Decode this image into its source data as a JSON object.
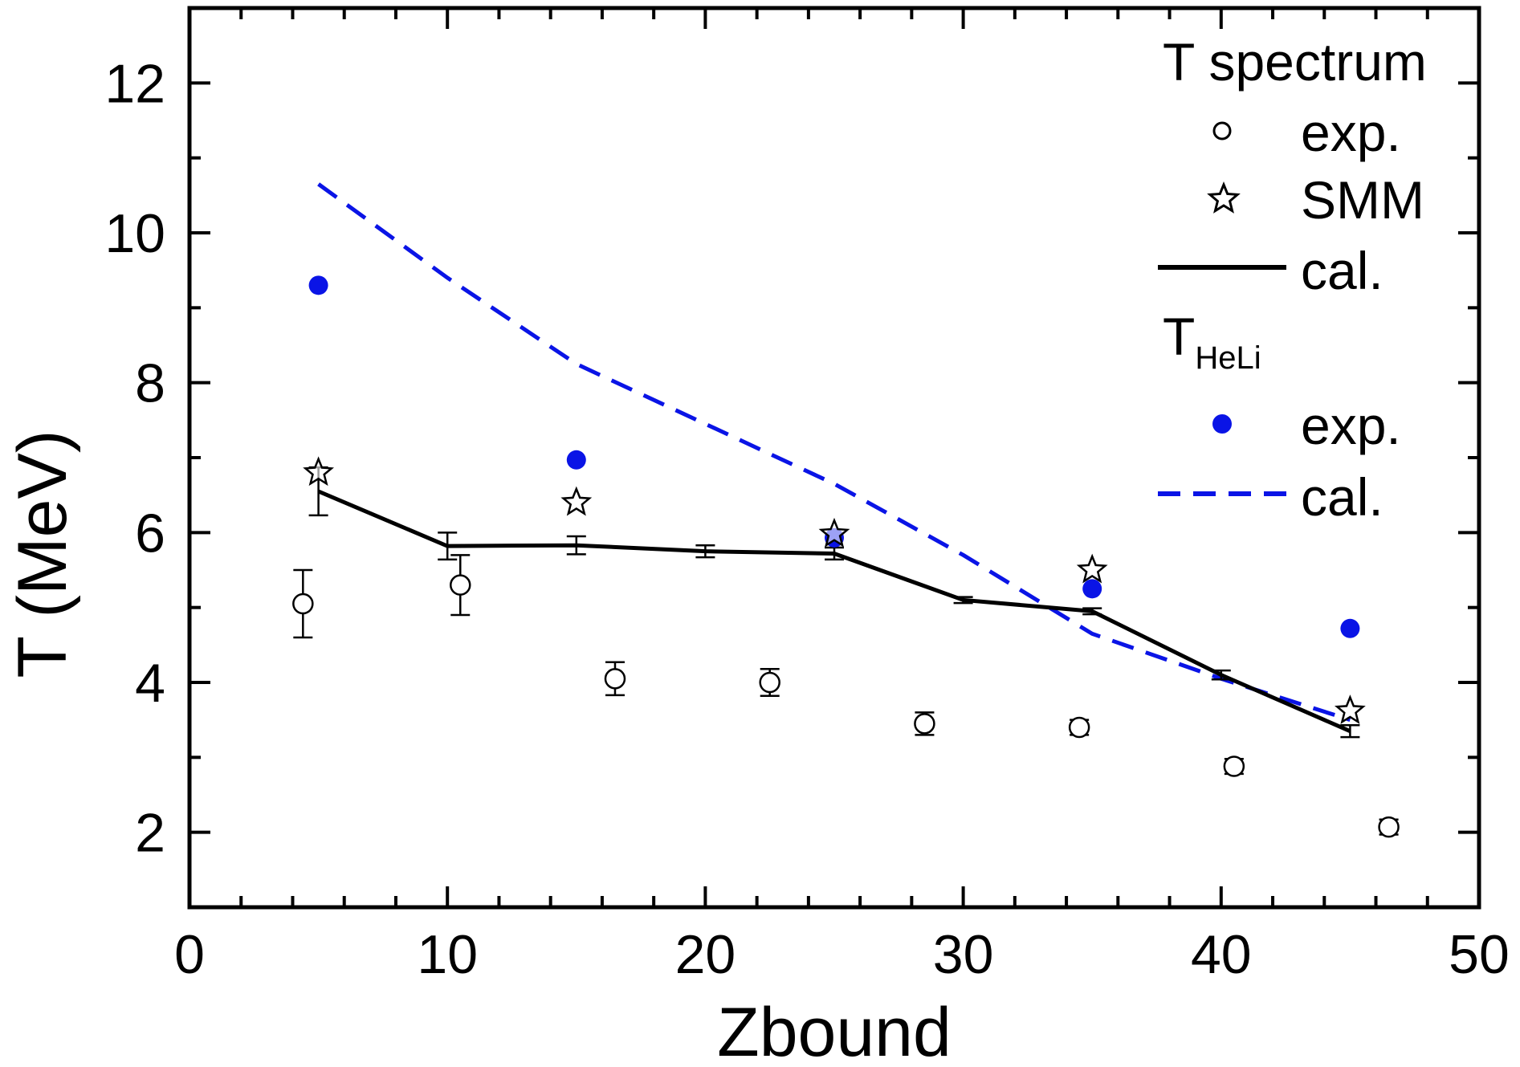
{
  "chart_data": {
    "type": "scatter",
    "xlabel": "Zbound",
    "ylabel": "T (MeV)",
    "xlim": [
      0,
      50
    ],
    "ylim": [
      1,
      13
    ],
    "xticks": [
      0,
      10,
      20,
      30,
      40,
      50
    ],
    "yticks": [
      2,
      4,
      6,
      8,
      10,
      12
    ],
    "xtick_labels": [
      "0",
      "10",
      "20",
      "30",
      "40",
      "50"
    ],
    "ytick_labels": [
      "2",
      "4",
      "6",
      "8",
      "10",
      "12"
    ],
    "grid": false,
    "legend_position": "top-right",
    "legend": {
      "group1_title": "T spectrum",
      "group2_title_main": "T",
      "group2_title_sub": "HeLi",
      "entries": [
        {
          "label": "exp.",
          "marker": "open-circle"
        },
        {
          "label": "SMM",
          "marker": "open-star"
        },
        {
          "label": "cal.",
          "marker": "solid-line"
        },
        {
          "label": "exp.",
          "marker": "filled-blue-circle"
        },
        {
          "label": "cal.",
          "marker": "dashed-blue-line"
        }
      ]
    },
    "colors": {
      "black": "#000000",
      "blue": "#0a14e6"
    },
    "series": [
      {
        "group": "T spectrum",
        "name": "exp.",
        "style": "open-circle",
        "x": [
          4.4,
          10.5,
          16.5,
          22.5,
          28.5,
          34.5,
          40.5,
          46.5
        ],
        "y": [
          5.05,
          5.3,
          4.05,
          4.0,
          3.45,
          3.4,
          2.88,
          2.07
        ],
        "err": [
          0.45,
          0.4,
          0.22,
          0.18,
          0.15,
          0.1,
          0.1,
          0.1
        ]
      },
      {
        "group": "T spectrum",
        "name": "SMM",
        "style": "open-star",
        "x": [
          5,
          15,
          25,
          35,
          45
        ],
        "y": [
          6.8,
          6.4,
          5.98,
          5.5,
          3.62
        ]
      },
      {
        "group": "T spectrum",
        "name": "cal.",
        "style": "solid-line",
        "x": [
          5,
          10,
          15,
          20,
          25,
          30,
          35,
          40,
          45
        ],
        "y": [
          6.55,
          5.82,
          5.83,
          5.75,
          5.72,
          5.1,
          4.95,
          4.1,
          3.35
        ],
        "err": [
          0.32,
          0.18,
          0.12,
          0.08,
          0.08,
          0.04,
          0.04,
          0.06,
          0.08
        ]
      },
      {
        "group": "THeLi",
        "name": "exp.",
        "style": "filled-blue-circle",
        "x": [
          5,
          15,
          25,
          35,
          45
        ],
        "y": [
          9.3,
          6.97,
          5.93,
          5.25,
          4.72
        ]
      },
      {
        "group": "THeLi",
        "name": "cal.",
        "style": "dashed-blue-line",
        "x": [
          5,
          10,
          15,
          20,
          25,
          30,
          35,
          40,
          45
        ],
        "y": [
          10.65,
          9.4,
          8.25,
          7.45,
          6.65,
          5.7,
          4.65,
          4.05,
          3.5
        ]
      }
    ]
  }
}
